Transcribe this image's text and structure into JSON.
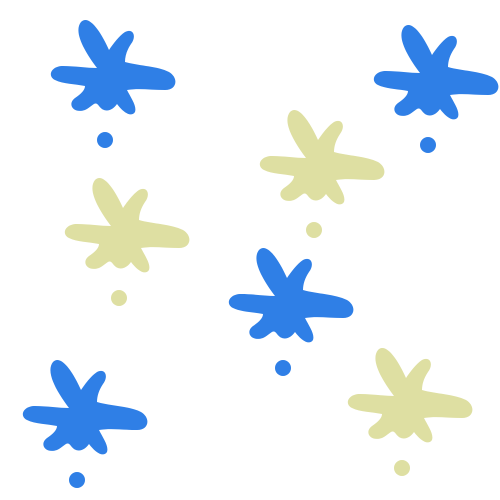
{
  "colors": {
    "blue": "#2f7fe6",
    "khaki": "#dedfa2",
    "background": "#ffffff"
  },
  "splats": [
    {
      "color": "blue"
    },
    {
      "color": "blue"
    },
    {
      "color": "khaki"
    },
    {
      "color": "khaki"
    },
    {
      "color": "blue"
    },
    {
      "color": "khaki"
    },
    {
      "color": "blue"
    }
  ]
}
